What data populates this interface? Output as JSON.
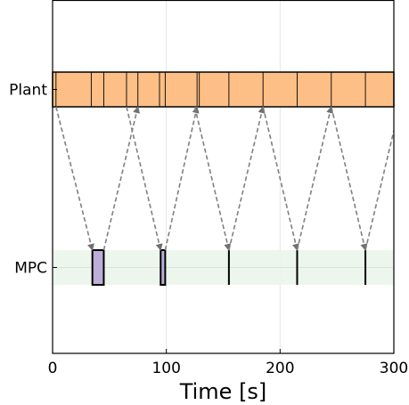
{
  "chart_data": {
    "type": "timing",
    "title": "",
    "xlabel": "Time [s]",
    "ylabel": "",
    "xlim": [
      0,
      300
    ],
    "xticks": [
      0,
      100,
      200,
      300
    ],
    "xtick_labels": [
      "0",
      "100",
      "200",
      "300"
    ],
    "grid": true,
    "rows": [
      {
        "name": "Plant",
        "label": "Plant",
        "fill": "#fdbf86",
        "stroke": "#000000"
      },
      {
        "name": "MPC",
        "label": "MPC",
        "fill": "#eaf5ea",
        "stroke": "none"
      }
    ],
    "plant_boundaries": [
      0,
      3,
      34,
      45,
      65,
      75,
      94,
      99,
      127,
      129,
      155,
      185,
      215,
      245,
      275,
      300
    ],
    "mpc_blocks": [
      {
        "start": 35,
        "end": 45
      },
      {
        "start": 95,
        "end": 99
      },
      {
        "start": 155,
        "end": 155
      },
      {
        "start": 215,
        "end": 215
      },
      {
        "start": 275,
        "end": 275
      }
    ],
    "mpc_block_fill": "#bcaed8",
    "arrows": [
      {
        "from_row": "Plant",
        "from_t": 3,
        "to_row": "MPC",
        "to_t": 35
      },
      {
        "from_row": "MPC",
        "from_t": 45,
        "to_row": "Plant",
        "to_t": 75
      },
      {
        "from_row": "Plant",
        "from_t": 65,
        "to_row": "MPC",
        "to_t": 95
      },
      {
        "from_row": "MPC",
        "from_t": 99,
        "to_row": "Plant",
        "to_t": 127
      },
      {
        "from_row": "Plant",
        "from_t": 125,
        "to_row": "MPC",
        "to_t": 155
      },
      {
        "from_row": "MPC",
        "from_t": 155,
        "to_row": "Plant",
        "to_t": 185
      },
      {
        "from_row": "Plant",
        "from_t": 185,
        "to_row": "MPC",
        "to_t": 215
      },
      {
        "from_row": "MPC",
        "from_t": 215,
        "to_row": "Plant",
        "to_t": 245
      },
      {
        "from_row": "Plant",
        "from_t": 245,
        "to_row": "MPC",
        "to_t": 275
      },
      {
        "from_row": "MPC",
        "from_t": 275,
        "to_row": "Plant",
        "to_t": 305
      }
    ],
    "arrow_color": "#808080"
  }
}
